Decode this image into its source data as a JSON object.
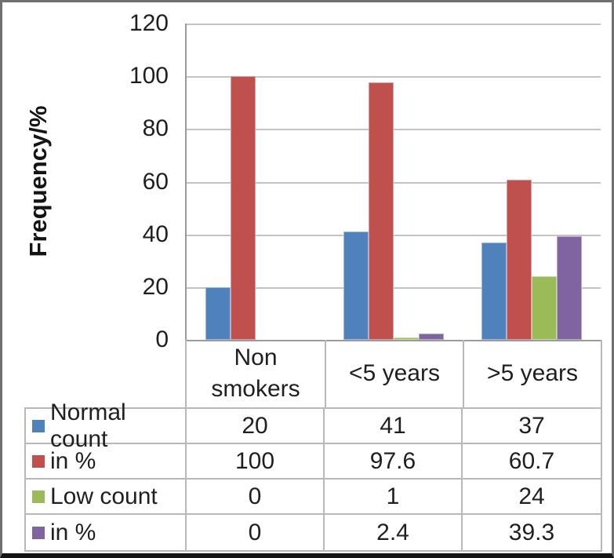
{
  "chart_data": {
    "type": "bar",
    "title": "",
    "ylabel": "Frequency/%",
    "xlabel": "",
    "ylim": [
      0,
      120
    ],
    "yticks": [
      0,
      20,
      40,
      60,
      80,
      100,
      120
    ],
    "grid": true,
    "legend_position": "data-table-left-column",
    "categories": [
      "Non smokers",
      "<5 years",
      ">5 years"
    ],
    "series": [
      {
        "name": "Normal count",
        "color": "#4F81BD",
        "values": [
          20,
          41,
          37
        ],
        "display_values": [
          "20",
          "41",
          "37"
        ]
      },
      {
        "name": "in %",
        "color": "#C0504D",
        "values": [
          100,
          97.6,
          60.7
        ],
        "display_values": [
          "100",
          "97.6",
          "60.7"
        ]
      },
      {
        "name": "Low count",
        "color": "#9BBB59",
        "values": [
          0,
          1,
          24
        ],
        "display_values": [
          "0",
          "1",
          "24"
        ]
      },
      {
        "name": "in %",
        "color": "#8064A2",
        "values": [
          0,
          2.4,
          39.3
        ],
        "display_values": [
          "0",
          "2.4",
          "39.3"
        ]
      }
    ]
  }
}
